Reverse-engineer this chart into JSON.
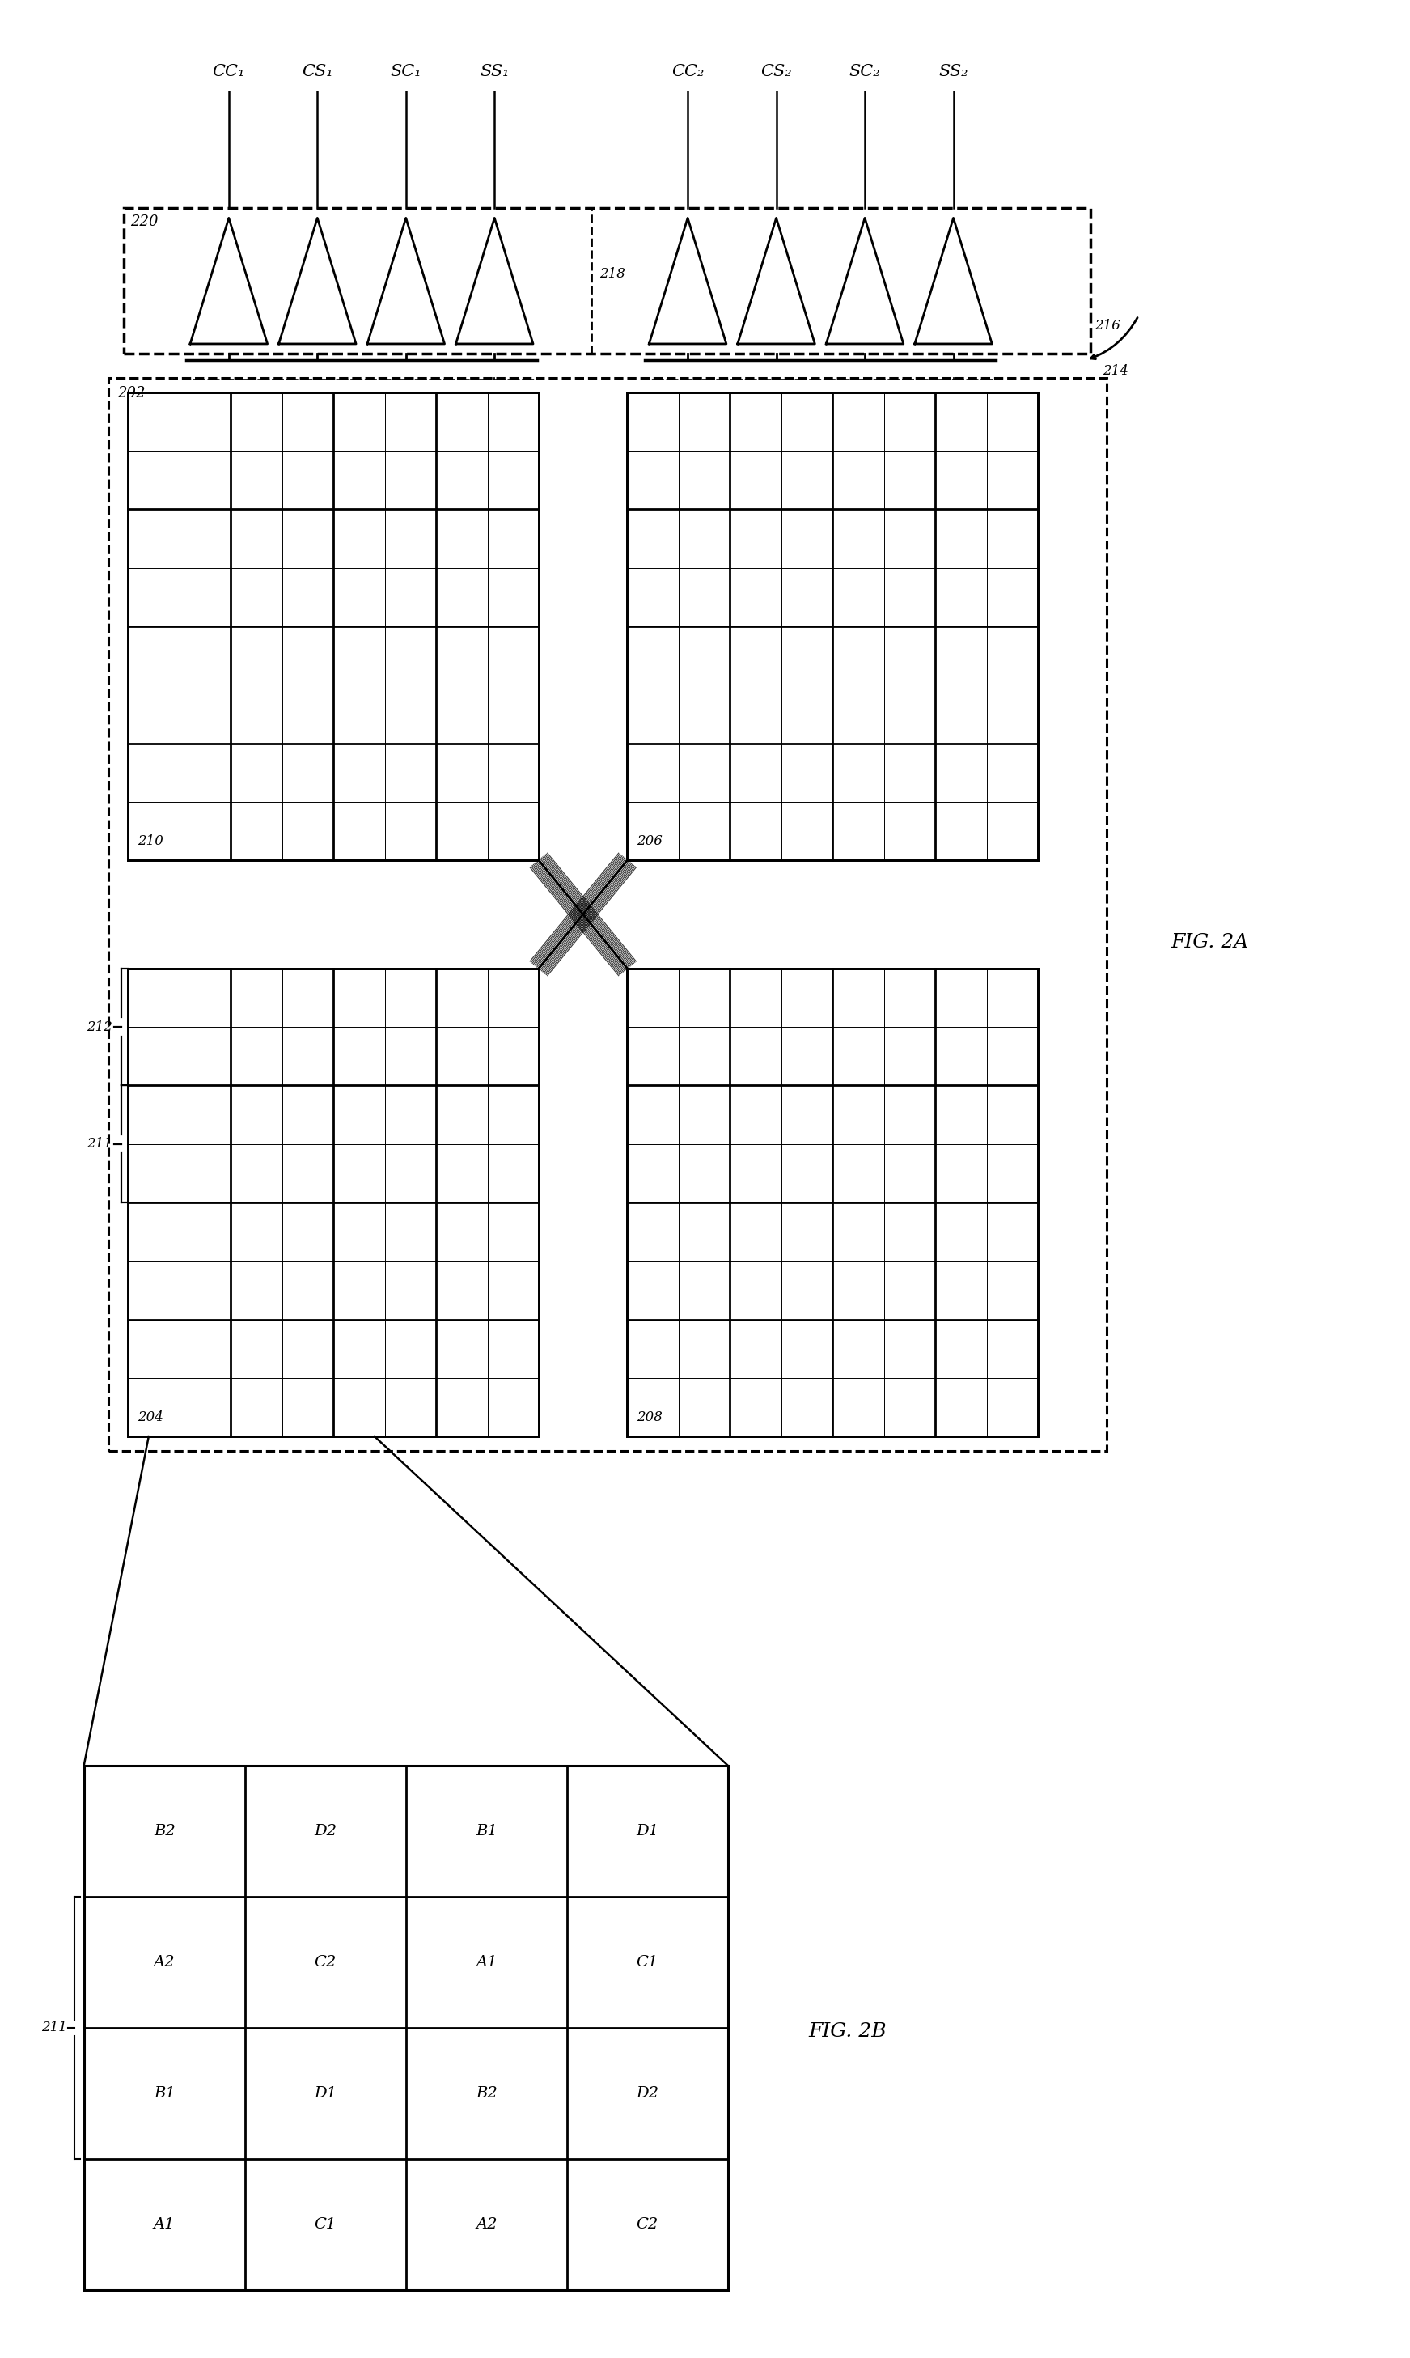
{
  "fig_width": 17.43,
  "fig_height": 29.14,
  "bg_color": "#ffffff",
  "signal_labels_1": [
    "CC₁",
    "CS₁",
    "SC₁",
    "SS₁"
  ],
  "signal_labels_2": [
    "CC₂",
    "CS₂",
    "SC₂",
    "SS₂"
  ],
  "fig2a_label": "FIG. 2A",
  "fig2b_label": "FIG. 2B",
  "pixel_labels": [
    [
      "B2",
      "D2",
      "B1",
      "D1"
    ],
    [
      "A2",
      "C2",
      "A1",
      "C1"
    ],
    [
      "B1",
      "D1",
      "B2",
      "D2"
    ],
    [
      "A1",
      "C1",
      "A2",
      "C2"
    ]
  ]
}
